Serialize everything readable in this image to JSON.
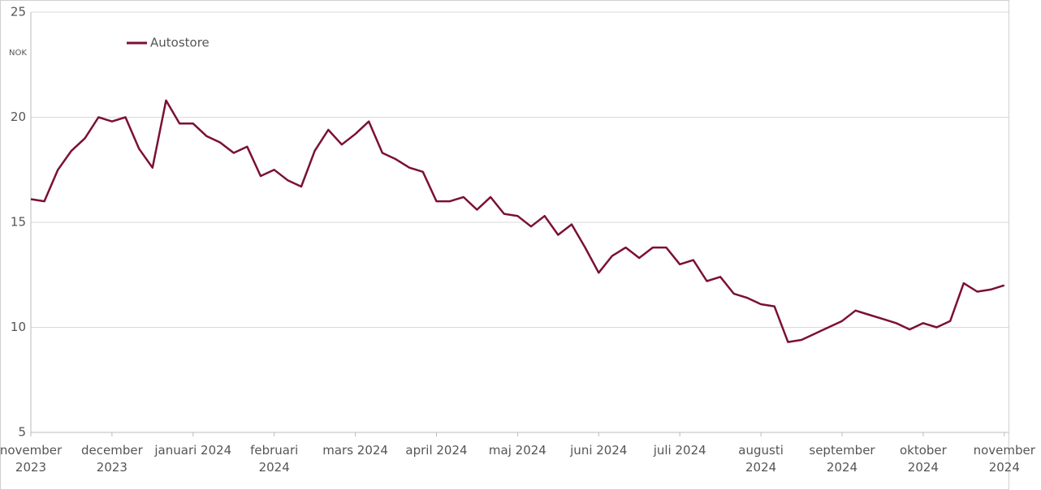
{
  "chart_data": {
    "type": "line",
    "y_axis_label": "NOK",
    "categories": [
      "november 2023",
      null,
      null,
      null,
      null,
      null,
      "december 2023",
      null,
      null,
      null,
      null,
      null,
      "januari 2024",
      null,
      null,
      null,
      null,
      null,
      "februari 2024",
      null,
      null,
      null,
      null,
      null,
      "mars 2024",
      null,
      null,
      null,
      null,
      null,
      "april 2024",
      null,
      null,
      null,
      null,
      null,
      "maj 2024",
      null,
      null,
      null,
      null,
      null,
      "juni 2024",
      null,
      null,
      null,
      null,
      null,
      "juli 2024",
      null,
      null,
      null,
      null,
      null,
      "augusti 2024",
      null,
      null,
      null,
      null,
      null,
      "september 2024",
      null,
      null,
      null,
      null,
      null,
      "oktober 2024",
      null,
      null,
      null,
      null,
      null,
      "november 2024"
    ],
    "series": [
      {
        "name": "Autostore",
        "color": "#7b1034",
        "values": [
          16.1,
          16.0,
          17.5,
          18.4,
          19.0,
          20.0,
          19.8,
          20.0,
          18.5,
          17.6,
          20.8,
          19.7,
          19.7,
          19.1,
          18.8,
          18.3,
          18.6,
          17.2,
          17.5,
          17.0,
          16.7,
          18.4,
          19.4,
          18.7,
          19.2,
          19.8,
          18.3,
          18.0,
          17.6,
          17.4,
          16.0,
          16.0,
          16.2,
          15.6,
          16.2,
          15.4,
          15.3,
          14.8,
          15.3,
          14.4,
          14.9,
          13.8,
          12.6,
          13.4,
          13.8,
          13.3,
          13.8,
          13.8,
          13.0,
          13.2,
          12.2,
          12.4,
          11.6,
          11.4,
          11.1,
          11.0,
          9.3,
          9.4,
          9.7,
          10.0,
          10.3,
          10.8,
          10.6,
          10.4,
          10.2,
          9.9,
          10.2,
          10.0,
          10.3,
          12.1,
          11.7,
          11.8,
          12.0
        ]
      }
    ],
    "ylim": [
      5,
      25
    ],
    "yticks": [
      5,
      10,
      15,
      20,
      25
    ],
    "grid": true,
    "legend": "top-left"
  }
}
